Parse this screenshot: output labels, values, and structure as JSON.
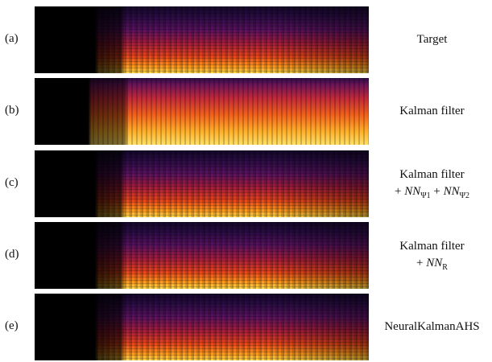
{
  "panels": [
    {
      "tag": "(a)",
      "caption": [
        [
          {
            "text": "Target"
          }
        ]
      ]
    },
    {
      "tag": "(b)",
      "caption": [
        [
          {
            "text": "Kalman filter"
          }
        ]
      ]
    },
    {
      "tag": "(c)",
      "caption": [
        [
          {
            "text": "Kalman filter"
          }
        ],
        [
          {
            "text": "+ "
          },
          {
            "text": "NN",
            "sub": "Ψ1"
          },
          {
            "text": " + "
          },
          {
            "text": "NN",
            "sub": "Ψ2"
          }
        ]
      ]
    },
    {
      "tag": "(d)",
      "caption": [
        [
          {
            "text": "Kalman filter"
          }
        ],
        [
          {
            "text": "+ "
          },
          {
            "text": "NN",
            "sub": "R"
          }
        ]
      ]
    },
    {
      "tag": "(e)",
      "caption": [
        [
          {
            "text": "NeuralKalmanAHS"
          }
        ]
      ]
    }
  ]
}
